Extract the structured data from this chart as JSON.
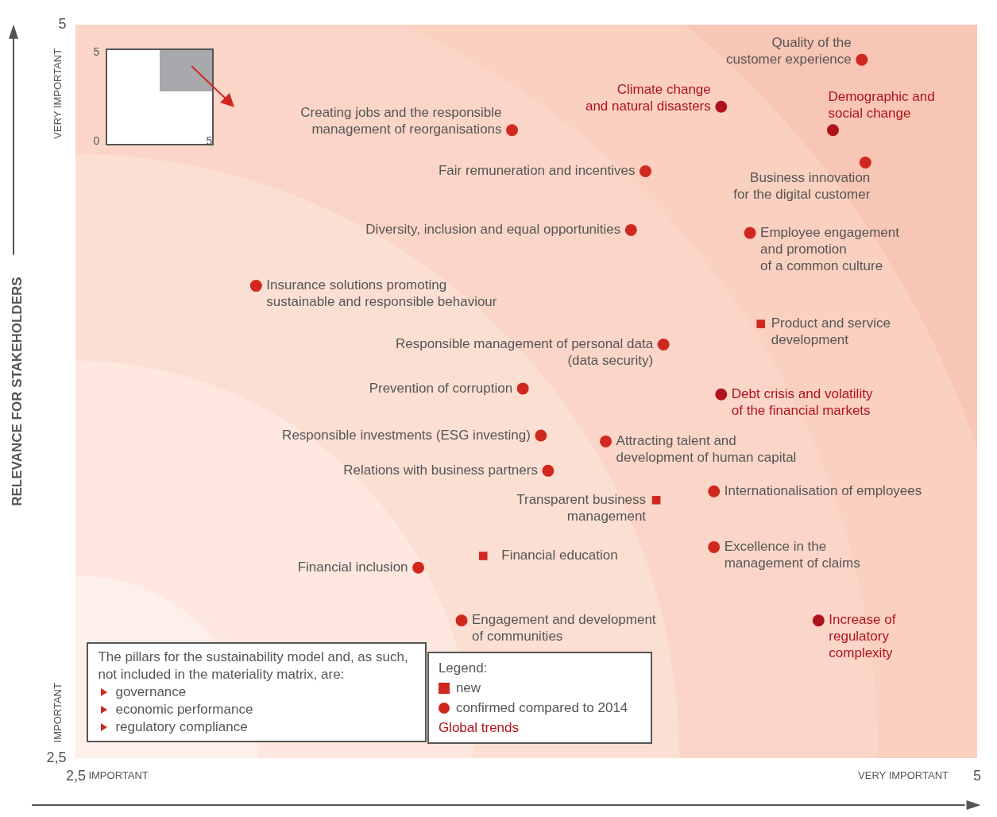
{
  "chart_data": {
    "type": "scatter",
    "ylabel": "RELEVANCE FOR STAKEHOLDERS",
    "legend_title": "Legend:",
    "legend": "bottom",
    "grid": false,
    "xlim": [
      2.5,
      5
    ],
    "xticks": [
      {
        "value": 2.5,
        "label": "2,5"
      },
      5
    ],
    "ylim": [
      2.5,
      5
    ],
    "yticks": [
      {
        "value": 2.5,
        "label": "2,5"
      },
      5
    ],
    "series": [
      {
        "name": "new",
        "color": "#d0281f",
        "marker": "square",
        "x": [
          4.4,
          4.11,
          3.63
        ],
        "values": [
          3.98,
          3.38,
          3.19
        ]
      },
      {
        "name": "confirmed compared to 2014",
        "color": "#d0281f",
        "marker": "circle",
        "x": [
          4.68,
          3.71,
          4.69,
          4.08,
          4.04,
          4.37,
          3.0,
          4.13,
          3.74,
          3.79,
          3.97,
          3.81,
          4.27,
          4.27,
          3.45,
          3.57
        ],
        "values": [
          4.88,
          4.64,
          4.53,
          4.5,
          4.3,
          4.29,
          4.11,
          3.91,
          3.76,
          3.6,
          3.58,
          3.48,
          3.41,
          3.22,
          3.15,
          2.97
        ]
      },
      {
        "name": "Global trends",
        "color": "#b0121b",
        "x": [
          4.29,
          4.6,
          4.29,
          4.56
        ],
        "values": [
          4.72,
          4.64,
          3.74,
          2.97
        ]
      }
    ],
    "annotations": [
      "The pillars for the sustainability model and, as such, not included in the materiality matrix, are:",
      "governance",
      "economic performance",
      "regulatory compliance",
      "IMPORTANT",
      "VERY IMPORTANT",
      "IMPORTANT",
      "VERY IMPORTANT",
      "5",
      "0",
      "5",
      {
        "text": "Quality of the\ncustomer experience",
        "x": 4.68,
        "y": 4.88
      },
      {
        "text": "Climate change\nand natural disasters",
        "x": 4.29,
        "y": 4.72
      },
      {
        "text": "Demographic and\nsocial change",
        "x": 4.6,
        "y": 4.64
      },
      {
        "text": "Creating jobs and the responsible\nmanagement of reorganisations",
        "x": 3.71,
        "y": 4.64
      },
      {
        "text": "Business innovation\nfor the digital customer",
        "x": 4.69,
        "y": 4.53
      },
      {
        "text": "Fair remuneration and incentives",
        "x": 4.08,
        "y": 4.5
      },
      {
        "text": "Diversity, inclusion and equal opportunities",
        "x": 4.04,
        "y": 4.3
      },
      {
        "text": "Employee engagement\nand promotion\nof a common culture",
        "x": 4.37,
        "y": 4.29
      },
      {
        "text": "Insurance solutions promoting\nsustainable and responsible behaviour",
        "x": 3.0,
        "y": 4.11
      },
      {
        "text": "Product and service\ndevelopment",
        "x": 4.4,
        "y": 3.98
      },
      {
        "text": "Responsible management of personal data\n(data security)",
        "x": 4.13,
        "y": 3.91
      },
      {
        "text": "Prevention of corruption",
        "x": 3.74,
        "y": 3.76
      },
      {
        "text": "Debt crisis and volatility\nof the financial markets",
        "x": 4.29,
        "y": 3.74
      },
      {
        "text": "Responsible investments (ESG investing)",
        "x": 3.79,
        "y": 3.6
      },
      {
        "text": "Attracting talent and\ndevelopment of human capital",
        "x": 3.97,
        "y": 3.58
      },
      {
        "text": "Relations with business partners",
        "x": 3.81,
        "y": 3.48
      },
      {
        "text": "Transparent business\nmanagement",
        "x": 4.11,
        "y": 3.38
      },
      {
        "text": "Internationalisation of employees",
        "x": 4.27,
        "y": 3.41
      },
      {
        "text": "Excellence in the\nmanagement of claims",
        "x": 4.27,
        "y": 3.22
      },
      {
        "text": "Financial education",
        "x": 3.63,
        "y": 3.19
      },
      {
        "text": "Financial inclusion",
        "x": 3.45,
        "y": 3.15
      },
      {
        "text": "Engagement and development\nof communities",
        "x": 3.57,
        "y": 2.97
      },
      {
        "text": "Increase of\nregulatory\ncomplexity",
        "x": 4.56,
        "y": 2.97
      }
    ]
  }
}
